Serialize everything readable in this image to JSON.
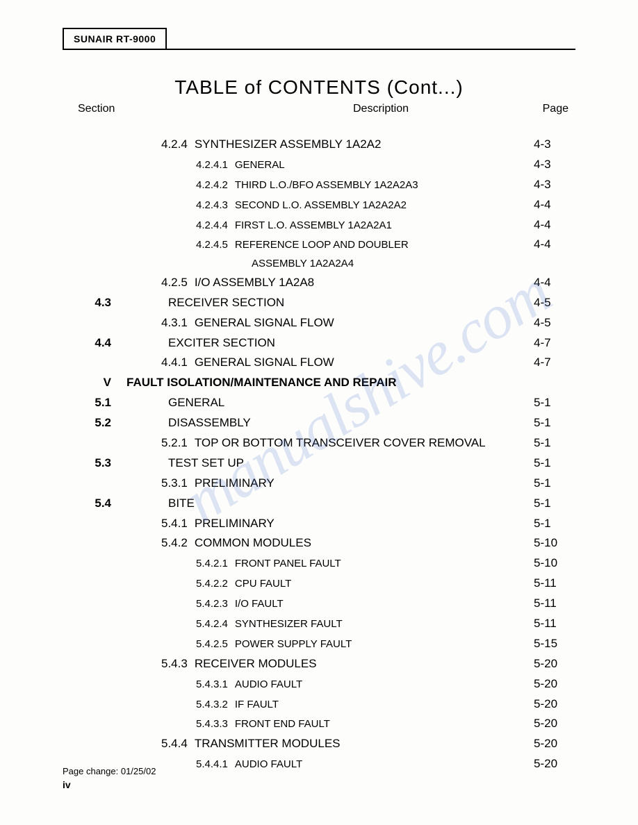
{
  "header": {
    "box_label": "SUNAIR RT-9000"
  },
  "title": "TABLE  of  CONTENTS (Cont...)",
  "column_headers": {
    "section": "Section",
    "description": "Description",
    "page": "Page"
  },
  "entries": [
    {
      "sec": "",
      "num": "4.2.4",
      "desc": "SYNTHESIZER ASSEMBLY 1A2A2",
      "page": "4-3",
      "indent": 1
    },
    {
      "sec": "",
      "num": "4.2.4.1",
      "desc": "GENERAL",
      "page": "4-3",
      "indent": 3,
      "small": true
    },
    {
      "sec": "",
      "num": "4.2.4.2",
      "desc": "THIRD L.O./BFO ASSEMBLY 1A2A2A3",
      "page": "4-3",
      "indent": 3,
      "small": true
    },
    {
      "sec": "",
      "num": "4.2.4.3",
      "desc": "SECOND L.O. ASSEMBLY 1A2A2A2",
      "page": "4-4",
      "indent": 3,
      "small": true
    },
    {
      "sec": "",
      "num": "4.2.4.4",
      "desc": "FIRST L.O. ASSEMBLY 1A2A2A1",
      "page": "4-4",
      "indent": 3,
      "small": true
    },
    {
      "sec": "",
      "num": "4.2.4.5",
      "desc": "REFERENCE LOOP AND DOUBLER",
      "page": "4-4",
      "indent": 3,
      "small": true
    },
    {
      "sec": "",
      "num": "",
      "desc": "ASSEMBLY 1A2A2A4",
      "page": "",
      "indent": 3,
      "small": true,
      "cont": true
    },
    {
      "sec": "",
      "num": "4.2.5",
      "desc": "I/O ASSEMBLY 1A2A8",
      "page": "4-4",
      "indent": 1
    },
    {
      "sec": "4.3",
      "num": "",
      "desc": "RECEIVER SECTION",
      "page": "4-5",
      "indent": 1
    },
    {
      "sec": "",
      "num": "4.3.1",
      "desc": "GENERAL SIGNAL FLOW",
      "page": "4-5",
      "indent": 1
    },
    {
      "sec": "4.4",
      "num": "",
      "desc": "EXCITER SECTION",
      "page": "4-7",
      "indent": 1
    },
    {
      "sec": "",
      "num": "4.4.1",
      "desc": "GENERAL SIGNAL FLOW",
      "page": "4-7",
      "indent": 1
    },
    {
      "sec": "V",
      "num": "",
      "desc": "FAULT ISOLATION/MAINTENANCE AND REPAIR",
      "page": "",
      "indent": 0,
      "chapter": true
    },
    {
      "sec": "5.1",
      "num": "",
      "desc": "GENERAL",
      "page": "5-1",
      "indent": 1
    },
    {
      "sec": "5.2",
      "num": "",
      "desc": "DISASSEMBLY",
      "page": "5-1",
      "indent": 1
    },
    {
      "sec": "",
      "num": "5.2.1",
      "desc": "TOP OR BOTTOM TRANSCEIVER COVER REMOVAL",
      "page": "5-1",
      "indent": 1
    },
    {
      "sec": "5.3",
      "num": "",
      "desc": "TEST SET UP",
      "page": "5-1",
      "indent": 1
    },
    {
      "sec": "",
      "num": "5.3.1",
      "desc": "PRELIMINARY",
      "page": "5-1",
      "indent": 1
    },
    {
      "sec": "5.4",
      "num": "",
      "desc": "BITE",
      "page": "5-1",
      "indent": 1
    },
    {
      "sec": "",
      "num": "5.4.1",
      "desc": "PRELIMINARY",
      "page": "5-1",
      "indent": 1
    },
    {
      "sec": "",
      "num": "5.4.2",
      "desc": "COMMON MODULES",
      "page": "5-10",
      "indent": 1
    },
    {
      "sec": "",
      "num": "5.4.2.1",
      "desc": "FRONT PANEL FAULT",
      "page": "5-10",
      "indent": 3,
      "small": true
    },
    {
      "sec": "",
      "num": "5.4.2.2",
      "desc": "CPU FAULT",
      "page": "5-11",
      "indent": 3,
      "small": true
    },
    {
      "sec": "",
      "num": "5.4.2.3",
      "desc": "I/O FAULT",
      "page": "5-11",
      "indent": 3,
      "small": true
    },
    {
      "sec": "",
      "num": "5.4.2.4",
      "desc": "SYNTHESIZER FAULT",
      "page": "5-11",
      "indent": 3,
      "small": true
    },
    {
      "sec": "",
      "num": "5.4.2.5",
      "desc": "POWER SUPPLY FAULT",
      "page": "5-15",
      "indent": 3,
      "small": true
    },
    {
      "sec": "",
      "num": "5.4.3",
      "desc": "RECEIVER MODULES",
      "page": "5-20",
      "indent": 1
    },
    {
      "sec": "",
      "num": "5.4.3.1",
      "desc": "AUDIO FAULT",
      "page": "5-20",
      "indent": 3,
      "small": true
    },
    {
      "sec": "",
      "num": "5.4.3.2",
      "desc": "IF FAULT",
      "page": "5-20",
      "indent": 3,
      "small": true
    },
    {
      "sec": "",
      "num": "5.4.3.3",
      "desc": "FRONT END FAULT",
      "page": "5-20",
      "indent": 3,
      "small": true
    },
    {
      "sec": "",
      "num": "5.4.4",
      "desc": "TRANSMITTER MODULES",
      "page": "5-20",
      "indent": 1
    },
    {
      "sec": "",
      "num": "5.4.4.1",
      "desc": "AUDIO FAULT",
      "page": "5-20",
      "indent": 3,
      "small": true
    }
  ],
  "footer": {
    "change": "Page change:  01/25/02",
    "page_number": "iv"
  },
  "watermark": "manualshive.com",
  "style": {
    "body_bg": "#fdfdfc",
    "text_color": "#000000",
    "watermark_color": "rgba(70,110,200,0.18)",
    "title_fontsize": 28,
    "row_fontsize": 17,
    "small_fontsize": 15,
    "footer_fontsize": 13
  }
}
